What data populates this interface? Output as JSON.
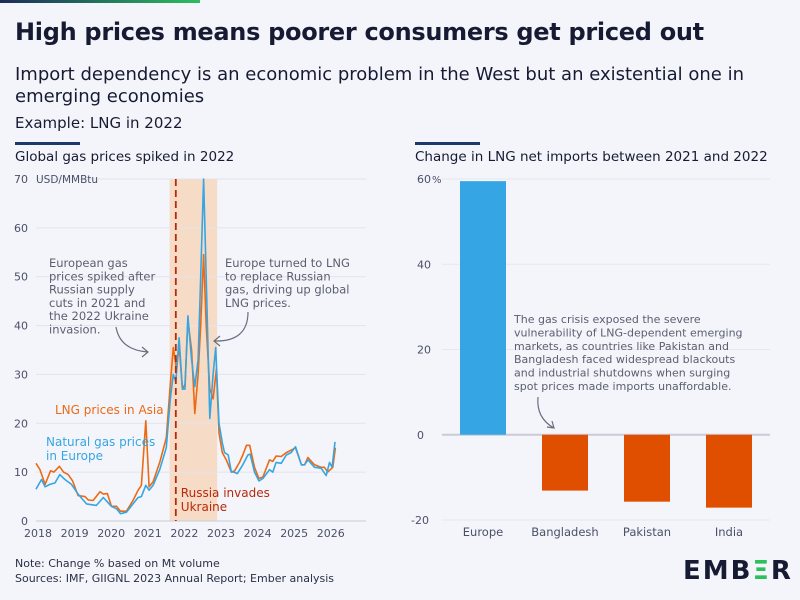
{
  "header": {
    "title": "High prices means poorer consumers get priced out",
    "subtitle": "Import dependency is an economic problem in the West but an existential one in emerging economies",
    "example": "Example: LNG in 2022"
  },
  "footer": {
    "note": "Note: Change % based on Mt volume",
    "sources": "Sources: IMF, GIIGNL 2023 Annual Report; Ember analysis",
    "logo": "EMBER"
  },
  "colors": {
    "europe_line": "#35a6e3",
    "asia_line": "#ec6a14",
    "shade": "#f6dcc6",
    "invasion_line": "#b8290c",
    "bar_positive": "#35a6e3",
    "bar_negative": "#e04e00",
    "rule": "#1b3a6b"
  },
  "chart_data": [
    {
      "type": "line",
      "title": "Global gas prices spiked in 2022",
      "ylabel": "USD/MMBtu",
      "xlim": [
        2018,
        2026.95
      ],
      "ylim": [
        0,
        70
      ],
      "yticks": [
        0,
        10,
        20,
        30,
        40,
        50,
        60,
        70
      ],
      "xticks": [
        2018,
        2019,
        2020,
        2021,
        2022,
        2023,
        2024,
        2025,
        2026
      ],
      "grid": true,
      "shaded_period": [
        2021.65,
        2022.95
      ],
      "marker_line": {
        "x": 2021.82,
        "label_line1": "Russia invades",
        "label_line2": "Ukraine"
      },
      "annotations": [
        {
          "lines": [
            "European gas",
            "prices spiked after",
            "Russian supply",
            "cuts in 2021 and",
            "the 2022 Ukraine",
            "invasion."
          ]
        },
        {
          "lines": [
            "Europe turned to LNG",
            "to replace Russian",
            "gas, driving up global",
            "LNG prices."
          ]
        }
      ],
      "series": [
        {
          "name": "LNG prices in Asia",
          "color": "#ec6a14",
          "x": [
            2018,
            2018.11,
            2018.25,
            2018.4,
            2018.49,
            2018.64,
            2018.75,
            2018.88,
            2019.0,
            2019.15,
            2019.34,
            2019.43,
            2019.56,
            2019.75,
            2019.84,
            2019.95,
            2020.06,
            2020.2,
            2020.31,
            2020.47,
            2020.65,
            2020.79,
            2020.88,
            2021.0,
            2021.09,
            2021.2,
            2021.38,
            2021.56,
            2021.67,
            2021.75,
            2021.84,
            2021.91,
            2022.0,
            2022.07,
            2022.15,
            2022.25,
            2022.34,
            2022.43,
            2022.5,
            2022.58,
            2022.65,
            2022.75,
            2022.84,
            2022.93,
            2023.0,
            2023.09,
            2023.2,
            2023.34,
            2023.43,
            2023.56,
            2023.65,
            2023.75,
            2023.84,
            2023.97,
            2024.09,
            2024.2,
            2024.38,
            2024.47,
            2024.56,
            2024.7,
            2024.84,
            2024.97,
            2025.09,
            2025.25,
            2025.34,
            2025.43,
            2025.61,
            2025.79,
            2025.88,
            2025.97,
            2026.11,
            2026.18
          ],
          "y": [
            11.8,
            10.5,
            7.5,
            10.3,
            10,
            11.2,
            10,
            9.5,
            8.2,
            5.2,
            5,
            4.3,
            4.2,
            6,
            5.5,
            5.6,
            3,
            3,
            2,
            2,
            4.2,
            6.3,
            7.3,
            20.5,
            7,
            8,
            12,
            17,
            28,
            35.5,
            31,
            36,
            27,
            28,
            41,
            35,
            22,
            30,
            40,
            54.5,
            40,
            27,
            25,
            31,
            18,
            14,
            12.5,
            10,
            10.3,
            12,
            13.5,
            15.5,
            15.5,
            11,
            8.7,
            9,
            12.5,
            12.2,
            13.3,
            13.2,
            14,
            14.5,
            15,
            11.5,
            11.5,
            13,
            11.5,
            11,
            11,
            10,
            11,
            15
          ]
        },
        {
          "name": "Natural gas prices in Europe",
          "color": "#35a6e3",
          "x": [
            2018,
            2018.15,
            2018.25,
            2018.38,
            2018.52,
            2018.65,
            2018.79,
            2018.97,
            2019.15,
            2019.38,
            2019.65,
            2019.84,
            2020.06,
            2020.2,
            2020.31,
            2020.47,
            2020.65,
            2020.79,
            2020.88,
            2021.0,
            2021.09,
            2021.2,
            2021.38,
            2021.56,
            2021.67,
            2021.75,
            2021.82,
            2021.91,
            2022.0,
            2022.07,
            2022.15,
            2022.25,
            2022.34,
            2022.43,
            2022.5,
            2022.58,
            2022.65,
            2022.75,
            2022.84,
            2022.91,
            2023.0,
            2023.09,
            2023.15,
            2023.25,
            2023.34,
            2023.41,
            2023.5,
            2023.65,
            2023.79,
            2023.85,
            2023.97,
            2024.09,
            2024.2,
            2024.38,
            2024.47,
            2024.56,
            2024.7,
            2024.84,
            2024.97,
            2025.09,
            2025.25,
            2025.34,
            2025.43,
            2025.61,
            2025.79,
            2025.93,
            2026.02,
            2026.09,
            2026.17
          ],
          "y": [
            6.5,
            8.5,
            7,
            7.5,
            7.8,
            9.5,
            8.5,
            7.5,
            5.5,
            3.5,
            3.2,
            4.8,
            3,
            2.5,
            1.5,
            1.8,
            3.5,
            4.8,
            5,
            7.3,
            6.3,
            7.3,
            10.5,
            15,
            25,
            30,
            28.5,
            37.5,
            27,
            27,
            42,
            33,
            27.5,
            33,
            50,
            70,
            50,
            21,
            30,
            35.5,
            20,
            16,
            14,
            13.5,
            10,
            10,
            9.7,
            11.5,
            13.5,
            13.7,
            10,
            8.2,
            8.7,
            10.5,
            10,
            12,
            11.8,
            13.5,
            14,
            15.2,
            11.5,
            11.5,
            12.5,
            11,
            10.8,
            9.3,
            12,
            11,
            16.2
          ]
        }
      ]
    },
    {
      "type": "bar",
      "title": "Change in LNG net imports between 2021 and 2022",
      "ylabel": "%",
      "ylim": [
        -20,
        60
      ],
      "yticks": [
        -20,
        0,
        20,
        40,
        60
      ],
      "categories": [
        "Europe",
        "Bangladesh",
        "Pakistan",
        "India"
      ],
      "values": [
        59.5,
        -13.1,
        -15.7,
        -17.1
      ],
      "annotation": [
        "The gas crisis exposed the severe",
        "vulnerability of LNG-dependent emerging",
        "markets, as countries like Pakistan and",
        "Bangladesh faced widespread blackouts",
        "and industrial shutdowns when surging",
        "spot prices made imports unaffordable."
      ]
    }
  ]
}
